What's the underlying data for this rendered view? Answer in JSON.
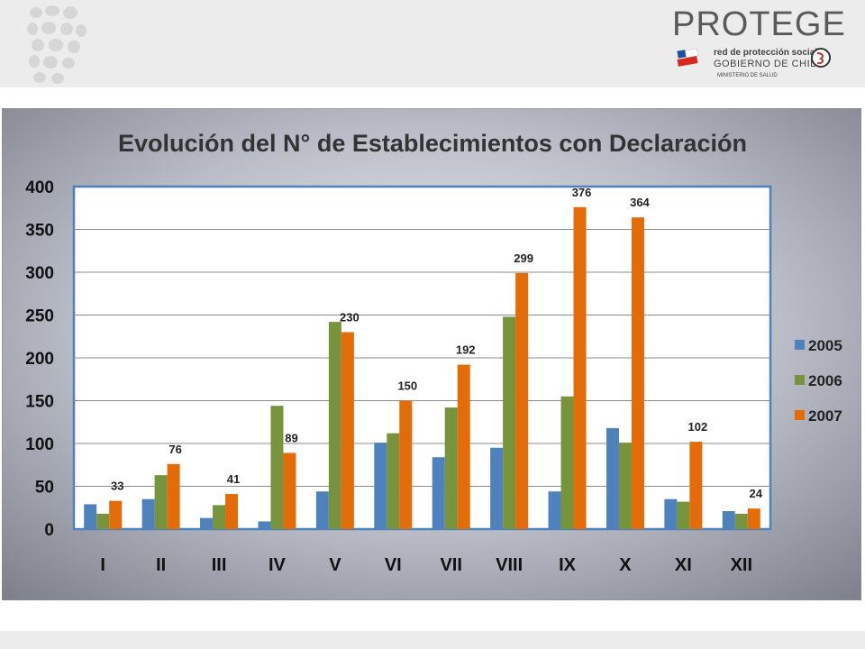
{
  "brand": {
    "title": "PROTEGE",
    "line1": "red de protección social",
    "line2": "GOBIERNO DE CHILE",
    "line3": "MINISTERIO DE SALUD"
  },
  "chart_data": {
    "type": "bar",
    "title": "Evolución del N° de Establecimientos con Declaración",
    "xlabel": "",
    "ylabel": "",
    "categories": [
      "I",
      "II",
      "III",
      "IV",
      "V",
      "VI",
      "VII",
      "VIII",
      "IX",
      "X",
      "XI",
      "XII"
    ],
    "series": [
      {
        "name": "2005",
        "color": "#4f81bd",
        "values": [
          29,
          35,
          13,
          9,
          44,
          101,
          84,
          95,
          44,
          118,
          35,
          21
        ]
      },
      {
        "name": "2006",
        "color": "#77933c",
        "values": [
          18,
          63,
          28,
          144,
          242,
          112,
          142,
          248,
          155,
          101,
          32,
          18
        ]
      },
      {
        "name": "2007",
        "color": "#e36c09",
        "values": [
          33,
          76,
          41,
          89,
          230,
          150,
          192,
          299,
          376,
          364,
          102,
          24
        ]
      }
    ],
    "data_labels": [
      "33",
      "76",
      "41",
      "89",
      "230",
      "150",
      "192",
      "299",
      "376",
      "364",
      "102",
      "24"
    ],
    "ylim": [
      0,
      400
    ],
    "yticks": [
      0,
      50,
      100,
      150,
      200,
      250,
      300,
      350,
      400
    ],
    "grid": true,
    "legend": "right"
  }
}
